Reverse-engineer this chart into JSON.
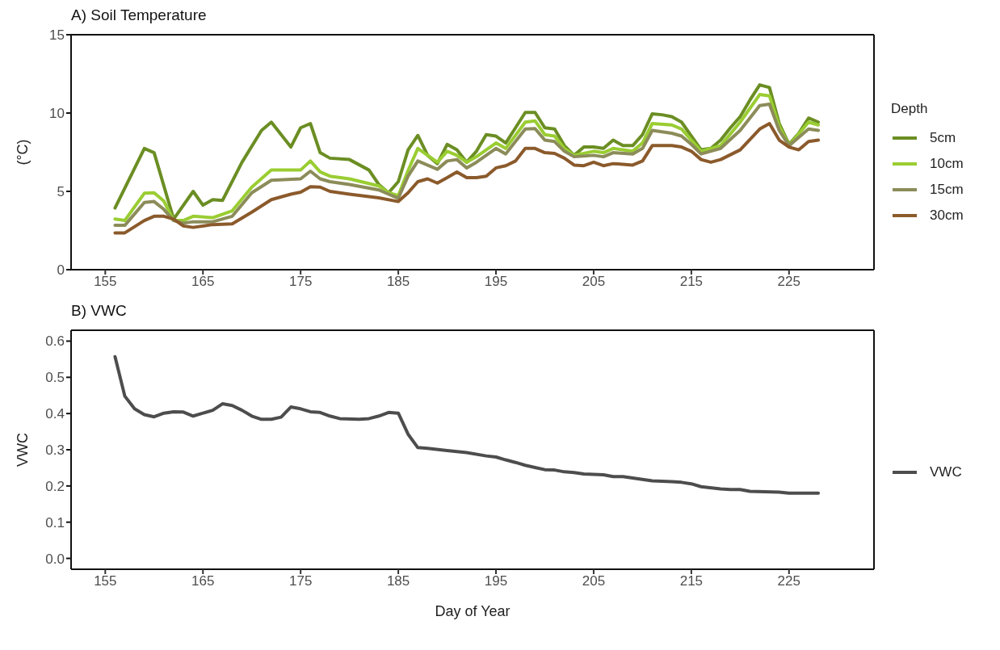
{
  "chart_data": [
    {
      "type": "line",
      "title": "A) Soil Temperature",
      "ylabel": "(°C)",
      "legend_title": "Depth",
      "legend": "right",
      "xlim": [
        151.5,
        233.7
      ],
      "xticks": [
        155,
        165,
        175,
        185,
        195,
        205,
        215,
        225
      ],
      "ylim": [
        0,
        15
      ],
      "yticks": [
        0,
        5,
        10,
        15
      ],
      "series": [
        {
          "name": "5cm",
          "color": "#6b8e23",
          "x": [
            156,
            159,
            160,
            162,
            164,
            165,
            166,
            167,
            169,
            171,
            172,
            174,
            175,
            176,
            177,
            178,
            180,
            182,
            183,
            184,
            185,
            186,
            187,
            188,
            189,
            190,
            191,
            192,
            193,
            194,
            195,
            196,
            197,
            198,
            199,
            200,
            201,
            202,
            203,
            204,
            205,
            206,
            207,
            208,
            209,
            210,
            211,
            212,
            213,
            214,
            215,
            216,
            217,
            218,
            219,
            220,
            221,
            222,
            223,
            224,
            225,
            226,
            227,
            228
          ],
          "values": [
            3.94,
            7.74,
            7.47,
            3.23,
            5.0,
            4.12,
            4.47,
            4.42,
            6.86,
            8.89,
            9.42,
            7.83,
            9.06,
            9.33,
            7.47,
            7.12,
            7.03,
            6.36,
            5.44,
            4.91,
            5.62,
            7.65,
            8.57,
            7.3,
            6.77,
            8.0,
            7.65,
            6.86,
            7.56,
            8.62,
            8.53,
            8.09,
            9.06,
            10.04,
            10.04,
            9.06,
            8.98,
            7.92,
            7.3,
            7.83,
            7.83,
            7.74,
            8.27,
            7.92,
            7.92,
            8.62,
            9.95,
            9.89,
            9.77,
            9.42,
            8.53,
            7.65,
            7.74,
            8.27,
            9.06,
            9.77,
            10.83,
            11.8,
            11.63,
            9.33,
            8.0,
            8.71,
            9.68,
            9.42
          ]
        },
        {
          "name": "10cm",
          "color": "#9acd32",
          "x": [
            156,
            157,
            159,
            160,
            161,
            162,
            163,
            164,
            166,
            168,
            170,
            172,
            175,
            176,
            177,
            178,
            180,
            183,
            184,
            185,
            186,
            187,
            189,
            190,
            191,
            192,
            193,
            195,
            196,
            198,
            199,
            200,
            201,
            202,
            203,
            205,
            206,
            207,
            209,
            210,
            211,
            213,
            214,
            215,
            216,
            218,
            220,
            222,
            223,
            224,
            225,
            227,
            228
          ],
          "values": [
            3.23,
            3.14,
            4.88,
            4.91,
            4.38,
            3.14,
            3.14,
            3.41,
            3.32,
            3.76,
            5.27,
            6.36,
            6.36,
            6.94,
            6.24,
            5.97,
            5.8,
            5.35,
            4.91,
            4.73,
            6.33,
            7.74,
            6.86,
            7.56,
            7.3,
            6.86,
            7.21,
            8.09,
            7.74,
            9.42,
            9.5,
            8.62,
            8.53,
            7.74,
            7.3,
            7.56,
            7.47,
            7.74,
            7.56,
            8.09,
            9.33,
            9.24,
            8.98,
            8.27,
            7.56,
            7.92,
            9.42,
            11.18,
            11.1,
            9.15,
            7.92,
            9.42,
            9.24
          ]
        },
        {
          "name": "15cm",
          "color": "#8c8c5a",
          "x": [
            156,
            157,
            159,
            160,
            161,
            162,
            163,
            164,
            166,
            168,
            170,
            172,
            175,
            176,
            177,
            178,
            180,
            183,
            185,
            186,
            187,
            189,
            190,
            191,
            192,
            193,
            195,
            196,
            198,
            199,
            200,
            201,
            202,
            203,
            205,
            206,
            207,
            209,
            210,
            211,
            213,
            214,
            215,
            216,
            218,
            220,
            222,
            223,
            224,
            225,
            227,
            228
          ],
          "values": [
            2.83,
            2.83,
            4.29,
            4.35,
            3.85,
            3.14,
            2.97,
            3.06,
            3.06,
            3.41,
            4.91,
            5.71,
            5.8,
            6.29,
            5.8,
            5.62,
            5.44,
            5.09,
            4.56,
            5.97,
            6.94,
            6.41,
            6.94,
            7.03,
            6.5,
            6.86,
            7.74,
            7.39,
            8.98,
            9.01,
            8.27,
            8.18,
            7.56,
            7.21,
            7.3,
            7.21,
            7.47,
            7.39,
            7.74,
            8.89,
            8.71,
            8.53,
            8.0,
            7.39,
            7.74,
            8.89,
            10.48,
            10.57,
            8.89,
            7.92,
            8.98,
            8.89
          ]
        },
        {
          "name": "30cm",
          "color": "#8b5a2b",
          "x": [
            156,
            157,
            159,
            160,
            161,
            162,
            163,
            164,
            166,
            168,
            170,
            172,
            174,
            175,
            176,
            177,
            178,
            180,
            183,
            185,
            186,
            187,
            188,
            189,
            190,
            191,
            192,
            193,
            194,
            195,
            196,
            197,
            198,
            199,
            200,
            201,
            202,
            203,
            204,
            205,
            206,
            207,
            209,
            210,
            211,
            213,
            214,
            215,
            216,
            217,
            218,
            220,
            222,
            223,
            224,
            225,
            226,
            227,
            228
          ],
          "values": [
            2.35,
            2.35,
            3.14,
            3.41,
            3.41,
            3.23,
            2.79,
            2.7,
            2.88,
            2.93,
            3.67,
            4.47,
            4.82,
            4.95,
            5.3,
            5.27,
            5.0,
            4.82,
            4.59,
            4.35,
            4.91,
            5.62,
            5.8,
            5.53,
            5.88,
            6.24,
            5.88,
            5.88,
            5.97,
            6.5,
            6.64,
            6.94,
            7.74,
            7.74,
            7.47,
            7.42,
            7.12,
            6.68,
            6.64,
            6.86,
            6.64,
            6.77,
            6.68,
            6.94,
            7.92,
            7.92,
            7.83,
            7.56,
            7.03,
            6.86,
            7.03,
            7.65,
            8.98,
            9.33,
            8.27,
            7.83,
            7.65,
            8.18,
            8.27
          ]
        }
      ]
    },
    {
      "type": "line",
      "title": "B) VWC",
      "xlabel": "Day of Year",
      "ylabel": "VWC",
      "legend": "right",
      "xlim": [
        151.5,
        233.7
      ],
      "xticks": [
        155,
        165,
        175,
        185,
        195,
        205,
        215,
        225
      ],
      "ylim": [
        -0.03,
        0.63
      ],
      "yticks": [
        {
          "value": 0,
          "label": "0.0"
        },
        0.1,
        0.2,
        0.3,
        0.4,
        0.5,
        0.6
      ],
      "series": [
        {
          "name": "VWC",
          "color": "#4d4d4d",
          "x": [
            156,
            157,
            158,
            159,
            160,
            161,
            162,
            163,
            164,
            165,
            166,
            167,
            168,
            169,
            170,
            171,
            172,
            173,
            174,
            175,
            176,
            177,
            178,
            179,
            181,
            182,
            183,
            184,
            185,
            186,
            187,
            188,
            190,
            192,
            194,
            195,
            196,
            197,
            198,
            199,
            200,
            201,
            202,
            203,
            204,
            206,
            207,
            208,
            209,
            210,
            211,
            213,
            214,
            215,
            216,
            218,
            219,
            220,
            221,
            224,
            225,
            228
          ],
          "values": [
            0.557,
            0.448,
            0.413,
            0.397,
            0.391,
            0.401,
            0.405,
            0.404,
            0.393,
            0.401,
            0.409,
            0.427,
            0.422,
            0.409,
            0.393,
            0.384,
            0.384,
            0.39,
            0.418,
            0.413,
            0.405,
            0.403,
            0.393,
            0.386,
            0.384,
            0.386,
            0.393,
            0.403,
            0.401,
            0.343,
            0.306,
            0.304,
            0.298,
            0.292,
            0.283,
            0.28,
            0.272,
            0.265,
            0.257,
            0.251,
            0.245,
            0.244,
            0.239,
            0.237,
            0.233,
            0.231,
            0.226,
            0.226,
            0.222,
            0.218,
            0.214,
            0.212,
            0.21,
            0.206,
            0.198,
            0.192,
            0.19,
            0.19,
            0.185,
            0.183,
            0.18,
            0.18
          ]
        }
      ]
    }
  ]
}
